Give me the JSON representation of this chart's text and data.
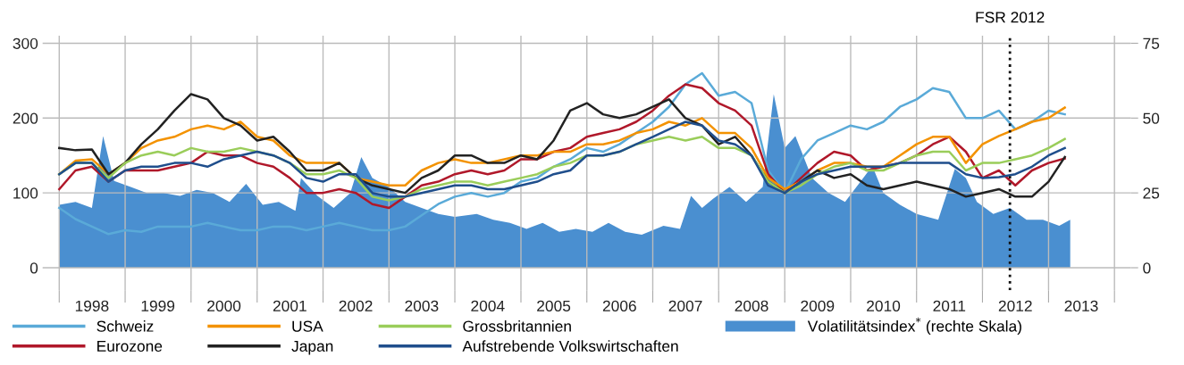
{
  "chart_data": {
    "type": "line",
    "x": [
      "1998-01",
      "1998-04",
      "1998-07",
      "1998-10",
      "1999-01",
      "1999-04",
      "1999-07",
      "1999-10",
      "2000-01",
      "2000-04",
      "2000-07",
      "2000-10",
      "2001-01",
      "2001-04",
      "2001-07",
      "2001-10",
      "2002-01",
      "2002-04",
      "2002-07",
      "2002-10",
      "2003-01",
      "2003-04",
      "2003-07",
      "2003-10",
      "2004-01",
      "2004-04",
      "2004-07",
      "2004-10",
      "2005-01",
      "2005-04",
      "2005-07",
      "2005-10",
      "2006-01",
      "2006-04",
      "2006-07",
      "2006-10",
      "2007-01",
      "2007-04",
      "2007-07",
      "2007-10",
      "2008-01",
      "2008-04",
      "2008-07",
      "2008-10",
      "2009-01",
      "2009-04",
      "2009-07",
      "2009-10",
      "2010-01",
      "2010-04",
      "2010-07",
      "2010-10",
      "2011-01",
      "2011-04",
      "2011-07",
      "2011-10",
      "2012-01",
      "2012-04",
      "2012-07",
      "2012-10",
      "2013-01",
      "2013-04"
    ],
    "series": [
      {
        "name": "Schweiz",
        "color": "#5aaad8",
        "values": [
          80,
          65,
          55,
          45,
          50,
          48,
          55,
          55,
          55,
          60,
          55,
          50,
          50,
          55,
          55,
          50,
          55,
          60,
          55,
          50,
          50,
          55,
          70,
          85,
          95,
          100,
          95,
          100,
          115,
          120,
          135,
          145,
          160,
          155,
          165,
          180,
          195,
          215,
          245,
          260,
          230,
          235,
          220,
          130,
          100,
          145,
          170,
          180,
          190,
          185,
          195,
          215,
          225,
          240,
          235,
          200,
          200,
          210,
          185,
          195,
          210,
          205
        ]
      },
      {
        "name": "Eurozone",
        "color": "#b0182a",
        "values": [
          105,
          130,
          135,
          115,
          130,
          130,
          130,
          135,
          140,
          155,
          150,
          150,
          140,
          135,
          120,
          100,
          100,
          105,
          100,
          85,
          80,
          95,
          110,
          115,
          125,
          130,
          125,
          130,
          145,
          145,
          155,
          160,
          175,
          180,
          185,
          195,
          210,
          230,
          245,
          240,
          220,
          210,
          190,
          125,
          100,
          120,
          140,
          155,
          150,
          130,
          135,
          140,
          150,
          165,
          175,
          155,
          120,
          130,
          110,
          130,
          140,
          146
        ]
      },
      {
        "name": "USA",
        "color": "#f39200",
        "values": [
          125,
          143,
          145,
          125,
          140,
          160,
          170,
          175,
          185,
          190,
          185,
          195,
          175,
          170,
          150,
          140,
          140,
          140,
          120,
          115,
          110,
          110,
          130,
          140,
          145,
          140,
          140,
          145,
          150,
          150,
          155,
          155,
          165,
          165,
          170,
          180,
          185,
          195,
          190,
          200,
          180,
          180,
          160,
          120,
          105,
          115,
          130,
          140,
          140,
          135,
          135,
          150,
          165,
          175,
          175,
          140,
          165,
          176,
          185,
          195,
          200,
          214
        ]
      },
      {
        "name": "Japan",
        "color": "#222222",
        "values": [
          160,
          157,
          158,
          125,
          140,
          165,
          185,
          210,
          232,
          225,
          200,
          190,
          170,
          175,
          155,
          130,
          130,
          140,
          120,
          110,
          105,
          100,
          120,
          130,
          150,
          150,
          140,
          140,
          150,
          145,
          170,
          210,
          220,
          205,
          200,
          205,
          215,
          225,
          200,
          190,
          165,
          175,
          150,
          115,
          100,
          115,
          130,
          120,
          125,
          110,
          105,
          110,
          115,
          110,
          105,
          95,
          100,
          105,
          95,
          95,
          115,
          148
        ]
      },
      {
        "name": "Grossbritannien",
        "color": "#9acd5a",
        "values": [
          125,
          140,
          140,
          120,
          140,
          150,
          155,
          150,
          160,
          155,
          155,
          160,
          155,
          150,
          140,
          125,
          125,
          130,
          120,
          95,
          90,
          95,
          105,
          110,
          115,
          115,
          110,
          115,
          120,
          125,
          135,
          140,
          150,
          150,
          155,
          165,
          170,
          175,
          170,
          175,
          160,
          160,
          150,
          115,
          100,
          110,
          125,
          135,
          140,
          130,
          130,
          140,
          150,
          155,
          155,
          130,
          140,
          140,
          145,
          150,
          160,
          172
        ]
      },
      {
        "name": "Aufstrebende Volkswirtschaften",
        "color": "#1f4e8c",
        "values": [
          125,
          140,
          140,
          115,
          130,
          135,
          135,
          140,
          140,
          135,
          145,
          150,
          155,
          150,
          140,
          120,
          115,
          125,
          125,
          100,
          95,
          95,
          100,
          105,
          110,
          110,
          105,
          105,
          110,
          115,
          125,
          130,
          150,
          150,
          155,
          165,
          175,
          185,
          195,
          190,
          170,
          165,
          150,
          110,
          100,
          115,
          125,
          130,
          135,
          135,
          135,
          140,
          140,
          140,
          140,
          125,
          120,
          121,
          125,
          135,
          150,
          160
        ]
      },
      {
        "name": "Volatilitätsindex$^{*}$ (rechte Skala)",
        "type": "area",
        "axis": "y2",
        "color": "#4a8fd0",
        "x": [
          "1998-01",
          "1998-04",
          "1998-07",
          "1998-09",
          "1998-11",
          "1999-02",
          "1999-05",
          "1999-08",
          "1999-11",
          "2000-02",
          "2000-05",
          "2000-08",
          "2000-11",
          "2001-02",
          "2001-05",
          "2001-08",
          "2001-09",
          "2001-12",
          "2002-03",
          "2002-06",
          "2002-08",
          "2002-10",
          "2003-01",
          "2003-04",
          "2003-07",
          "2003-10",
          "2004-01",
          "2004-05",
          "2004-08",
          "2004-11",
          "2005-02",
          "2005-05",
          "2005-08",
          "2005-11",
          "2006-02",
          "2006-05",
          "2006-08",
          "2006-11",
          "2007-03",
          "2007-06",
          "2007-08",
          "2007-10",
          "2007-12",
          "2008-03",
          "2008-06",
          "2008-09",
          "2008-11",
          "2009-01",
          "2009-03",
          "2009-06",
          "2009-09",
          "2009-12",
          "2010-05",
          "2010-07",
          "2010-10",
          "2011-01",
          "2011-05",
          "2011-08",
          "2011-10",
          "2011-12",
          "2012-03",
          "2012-06",
          "2012-09",
          "2012-12",
          "2013-03",
          "2013-05"
        ],
        "values": [
          21,
          22,
          20,
          44,
          29,
          27,
          25,
          25,
          24,
          26,
          25,
          22,
          28,
          21,
          22,
          19,
          30,
          24,
          20,
          25,
          37,
          30,
          27,
          22,
          20,
          18,
          17,
          18,
          16,
          15,
          13,
          15,
          12,
          13,
          12,
          15,
          12,
          11,
          14,
          13,
          24,
          20,
          23,
          27,
          22,
          27,
          58,
          40,
          44,
          30,
          25,
          22,
          34,
          25,
          21,
          18,
          16,
          33,
          30,
          22,
          18,
          20,
          16,
          16,
          14,
          16
        ]
      }
    ],
    "xlim": [
      "1997-10",
      "2014-04"
    ],
    "xticks": [
      {
        "value": "1998-01-01",
        "label": null
      },
      {
        "value": "1999-01-01",
        "label": null
      },
      {
        "value": "2000-01-01",
        "label": null
      },
      {
        "value": "2001-01-01",
        "label": null
      },
      {
        "value": "2002-01-01",
        "label": null
      },
      {
        "value": "2003-01-01",
        "label": null
      },
      {
        "value": "2004-01-01",
        "label": null
      },
      {
        "value": "2005-01-01",
        "label": null
      },
      {
        "value": "2006-01-01",
        "label": null
      },
      {
        "value": "2007-01-01",
        "label": null
      },
      {
        "value": "2008-01-01",
        "label": null
      },
      {
        "value": "2009-01-01",
        "label": null
      },
      {
        "value": "2010-01-01",
        "label": null
      },
      {
        "value": "2011-01-01",
        "label": null
      },
      {
        "value": "2012-01-01",
        "label": null
      },
      {
        "value": "2013-01-01",
        "label": null
      },
      {
        "value": "2014-01-01",
        "label": null
      },
      {
        "value": "1998-07-01",
        "label": "1998"
      },
      {
        "value": "1999-07-01",
        "label": "1999"
      },
      {
        "value": "2000-07-01",
        "label": "2000"
      },
      {
        "value": "2001-07-01",
        "label": "2001"
      },
      {
        "value": "2002-07-01",
        "label": "2002"
      },
      {
        "value": "2003-07-01",
        "label": "2003"
      },
      {
        "value": "2004-07-01",
        "label": "2004"
      },
      {
        "value": "2005-07-01",
        "label": "2005"
      },
      {
        "value": "2006-07-01",
        "label": "2006"
      },
      {
        "value": "2007-07-01",
        "label": "2007"
      },
      {
        "value": "2008-07-01",
        "label": "2008"
      },
      {
        "value": "2009-07-01",
        "label": "2009"
      },
      {
        "value": "2010-07-01",
        "label": "2010"
      },
      {
        "value": "2011-07-01",
        "label": "2011"
      },
      {
        "value": "2012-07-01",
        "label": "2012"
      },
      {
        "value": "2013-07-01",
        "label": "2013"
      }
    ],
    "ylim": [
      -30,
      310
    ],
    "yticks": [
      0,
      100,
      200,
      300
    ],
    "y2lim": [
      -7.5,
      77.5
    ],
    "y2ticks": [
      0,
      25,
      50,
      75
    ],
    "ref_lines": [
      {
        "axis": "x",
        "value": "2012-06",
        "label": "FSR 2012",
        "color": "#111111",
        "line_style": "dotted"
      }
    ],
    "grid": true,
    "legend": "bottom",
    "marker": "none",
    "line_style": "solid"
  }
}
